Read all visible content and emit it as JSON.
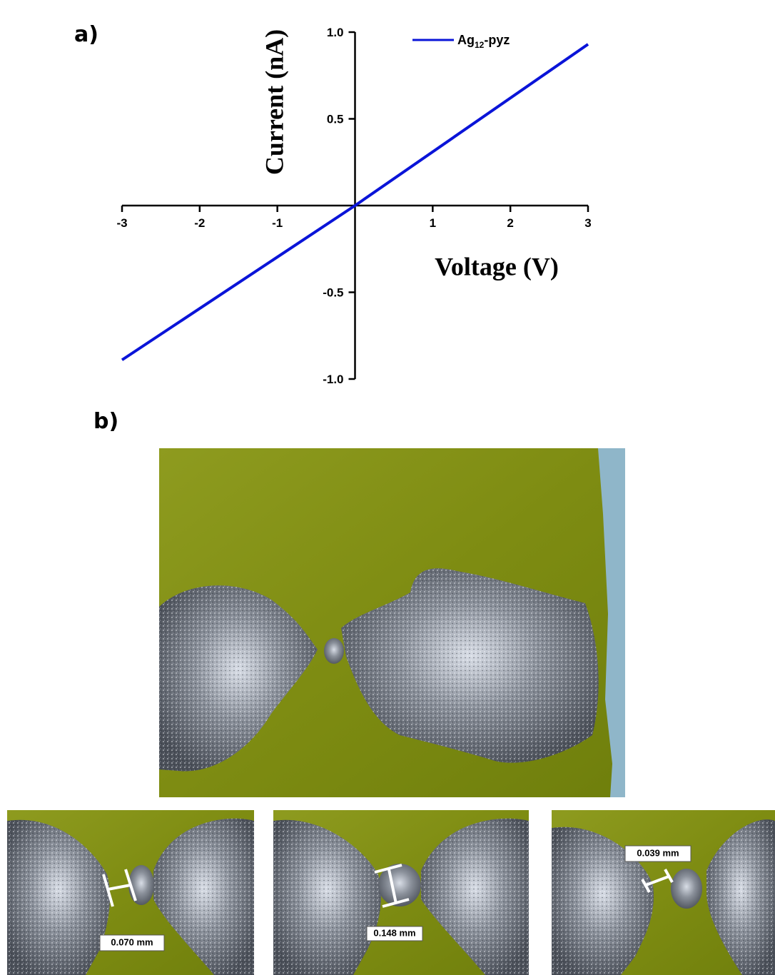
{
  "panel_labels": [
    "a)",
    "b)"
  ],
  "chart_data": {
    "type": "line",
    "x_label": "Voltage (V)",
    "y_label": "Current (nA)",
    "xlim": [
      -3,
      3
    ],
    "ylim": [
      -1,
      1
    ],
    "xticks": [
      -3,
      -2,
      -1,
      1,
      2,
      3
    ],
    "yticks": [
      {
        "value": 1,
        "label": "1.0"
      },
      0.5,
      -0.5,
      {
        "value": -1,
        "label": "-1.0"
      }
    ],
    "x": [
      -3,
      0,
      3
    ],
    "series": [
      {
        "name": "Ag12-pyz",
        "color": "#0a14d8",
        "values": [
          -0.89,
          0,
          0.93
        ]
      }
    ]
  },
  "photos": {
    "measurements": [
      "0.070 mm",
      "0.148 mm",
      "0.039 mm"
    ]
  }
}
